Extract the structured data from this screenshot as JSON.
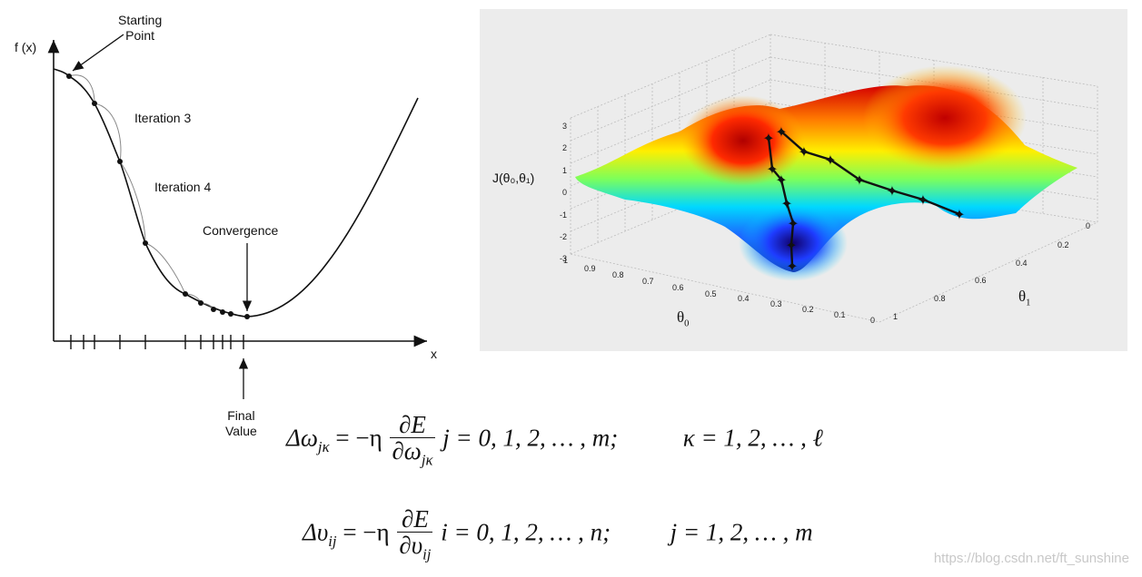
{
  "left_figure": {
    "y_axis_label": "f (x)",
    "x_axis_label": "x",
    "annotations": {
      "starting_point": "Starting\nPoint",
      "iteration_3": "Iteration 3",
      "iteration_4": "Iteration 4",
      "convergence": "Convergence",
      "final_value": "Final\nValue"
    }
  },
  "right_figure": {
    "z_axis_label": "J(θ₀,θ₁)",
    "theta0_label": "θ",
    "theta0_sub": "0",
    "theta1_label": "θ",
    "theta1_sub": "1",
    "z_ticks": [
      "3",
      "2",
      "1",
      "0",
      "-1",
      "-2",
      "-3"
    ],
    "theta0_ticks": [
      "1",
      "0.9",
      "0.8",
      "0.7",
      "0.6",
      "0.5",
      "0.4",
      "0.3",
      "0.2",
      "0.1",
      "0"
    ],
    "theta1_ticks": [
      "0",
      "0.2",
      "0.4",
      "0.6",
      "0.8",
      "1"
    ]
  },
  "equations": {
    "eq1": {
      "lhs_var": "Δω",
      "lhs_sub": "jκ",
      "equals": "= −η",
      "frac_num": "∂E",
      "frac_den_var": "∂ω",
      "frac_den_sub": "jκ",
      "range1": "j = 0, 1, 2, … , m;",
      "range2": "κ = 1, 2, … , ℓ"
    },
    "eq2": {
      "lhs_var": "Δυ",
      "lhs_sub": "ij",
      "equals": "= −η",
      "frac_num": "∂E",
      "frac_den_var": "∂υ",
      "frac_den_sub": "ij",
      "range1": "i = 0, 1, 2, … , n;",
      "range2": "j = 1, 2, … , m"
    }
  },
  "watermark": "https://blog.csdn.net/ft_sunshine"
}
